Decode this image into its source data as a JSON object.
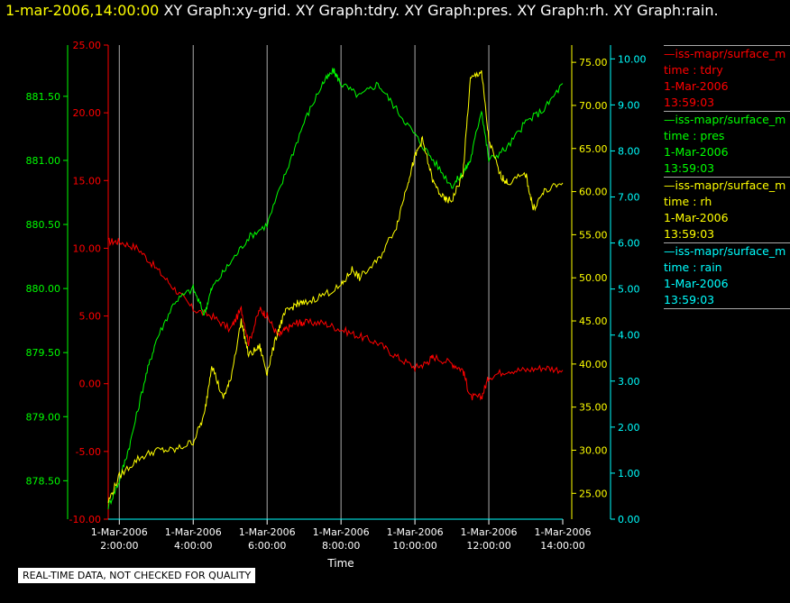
{
  "header": {
    "timestamp": "1-mar-2006,14:00:00",
    "graphs": "XY Graph:xy-grid.  XY Graph:tdry.  XY Graph:pres.  XY Graph:rh.  XY Graph:rain."
  },
  "quality_notice": "REAL-TIME DATA, NOT CHECKED FOR QUALITY",
  "colors": {
    "tdry": "#ff0000",
    "pres": "#00ff00",
    "rh": "#ffff00",
    "rain": "#00ffff",
    "grid": "#aaaaaa"
  },
  "legend": [
    {
      "name": "—iss-mapr/surface_m",
      "field": "time : tdry",
      "date": "1-Mar-2006",
      "time": "13:59:03",
      "color": "#ff0000"
    },
    {
      "name": "—iss-mapr/surface_m",
      "field": "time : pres",
      "date": "1-Mar-2006",
      "time": "13:59:03",
      "color": "#00ff00"
    },
    {
      "name": "—iss-mapr/surface_m",
      "field": "time : rh",
      "date": "1-Mar-2006",
      "time": "13:59:03",
      "color": "#ffff00"
    },
    {
      "name": "—iss-mapr/surface_m",
      "field": "time : rain",
      "date": "1-Mar-2006",
      "time": "13:59:03",
      "color": "#00ffff"
    }
  ],
  "chart_data": {
    "type": "line",
    "xlabel": "Time",
    "x_ticks": [
      {
        "date": "1-Mar-2006",
        "time": "2:00:00"
      },
      {
        "date": "1-Mar-2006",
        "time": "4:00:00"
      },
      {
        "date": "1-Mar-2006",
        "time": "6:00:00"
      },
      {
        "date": "1-Mar-2006",
        "time": "8:00:00"
      },
      {
        "date": "1-Mar-2006",
        "time": "10:00:00"
      },
      {
        "date": "1-Mar-2006",
        "time": "12:00:00"
      },
      {
        "date": "1-Mar-2006",
        "time": "14:00:00"
      }
    ],
    "xlim_hours": [
      1.7,
      14.0
    ],
    "grid": true,
    "axes": {
      "pres": {
        "ylim": [
          878.2,
          881.9
        ],
        "ticks": [
          "878.50",
          "879.00",
          "879.50",
          "880.00",
          "880.50",
          "881.00",
          "881.50"
        ]
      },
      "tdry": {
        "ylim": [
          -10,
          25
        ],
        "ticks": [
          "-10.00",
          "-5.00",
          "0.00",
          "5.00",
          "10.00",
          "15.00",
          "20.00",
          "25.00"
        ]
      },
      "rh": {
        "ylim": [
          22,
          77
        ],
        "ticks": [
          "25.00",
          "30.00",
          "35.00",
          "40.00",
          "45.00",
          "50.00",
          "55.00",
          "60.00",
          "65.00",
          "70.00",
          "75.00"
        ]
      },
      "rain": {
        "ylim": [
          0,
          10.3
        ],
        "ticks": [
          "0.00",
          "1.00",
          "2.00",
          "3.00",
          "4.00",
          "5.00",
          "6.00",
          "7.00",
          "8.00",
          "9.00",
          "10.00"
        ]
      }
    },
    "series": [
      {
        "key": "tdry",
        "x": [
          1.7,
          2.0,
          2.5,
          3.0,
          3.5,
          4.0,
          4.5,
          5.0,
          5.3,
          5.5,
          5.8,
          6.0,
          6.3,
          6.5,
          6.8,
          7.0,
          7.5,
          8.0,
          8.5,
          9.0,
          9.5,
          10.0,
          10.3,
          10.5,
          11.0,
          11.3,
          11.5,
          11.8,
          12.0,
          12.5,
          13.0,
          13.5,
          14.0
        ],
        "values": [
          10.5,
          10.5,
          10.0,
          8.5,
          7.0,
          5.5,
          5.0,
          4.0,
          5.5,
          3.0,
          5.5,
          5.0,
          3.5,
          4.0,
          4.5,
          4.5,
          4.5,
          4.0,
          3.5,
          3.0,
          2.0,
          1.2,
          1.5,
          2.0,
          1.5,
          1.0,
          -1.0,
          -1.0,
          0.5,
          1.0,
          1.0,
          1.2,
          1.0
        ]
      },
      {
        "key": "pres",
        "x": [
          1.7,
          2.0,
          2.3,
          2.7,
          3.0,
          3.5,
          4.0,
          4.3,
          4.5,
          5.0,
          5.5,
          6.0,
          6.5,
          7.0,
          7.5,
          7.8,
          8.0,
          8.5,
          9.0,
          9.5,
          10.0,
          10.5,
          11.0,
          11.3,
          11.5,
          11.8,
          12.0,
          12.5,
          13.0,
          13.5,
          14.0
        ],
        "values": [
          878.3,
          878.5,
          878.8,
          879.3,
          879.6,
          879.9,
          880.0,
          879.8,
          880.0,
          880.2,
          880.4,
          880.5,
          880.9,
          881.3,
          881.6,
          881.7,
          881.6,
          881.5,
          881.6,
          881.4,
          881.2,
          881.0,
          880.8,
          880.9,
          881.0,
          881.4,
          881.0,
          881.1,
          881.3,
          881.4,
          881.6
        ]
      },
      {
        "key": "rh",
        "x": [
          1.7,
          2.0,
          2.5,
          3.0,
          3.5,
          4.0,
          4.3,
          4.5,
          4.8,
          5.0,
          5.3,
          5.5,
          5.8,
          6.0,
          6.3,
          6.5,
          6.8,
          7.0,
          7.5,
          8.0,
          8.3,
          8.5,
          9.0,
          9.5,
          9.8,
          10.0,
          10.2,
          10.5,
          10.8,
          11.0,
          11.3,
          11.5,
          11.8,
          12.0,
          12.3,
          12.5,
          13.0,
          13.2,
          13.5,
          14.0
        ],
        "values": [
          24,
          27,
          29,
          30,
          30,
          31,
          34,
          40,
          36,
          38,
          45,
          41,
          42,
          39,
          44,
          46,
          47,
          47,
          48,
          49,
          51,
          50,
          52,
          56,
          61,
          64,
          66,
          61,
          59,
          59,
          62,
          73,
          74,
          66,
          62,
          61,
          62,
          58,
          60,
          61
        ]
      },
      {
        "key": "rain",
        "x": [
          1.7,
          14.0
        ],
        "values": [
          0,
          0
        ]
      }
    ]
  }
}
